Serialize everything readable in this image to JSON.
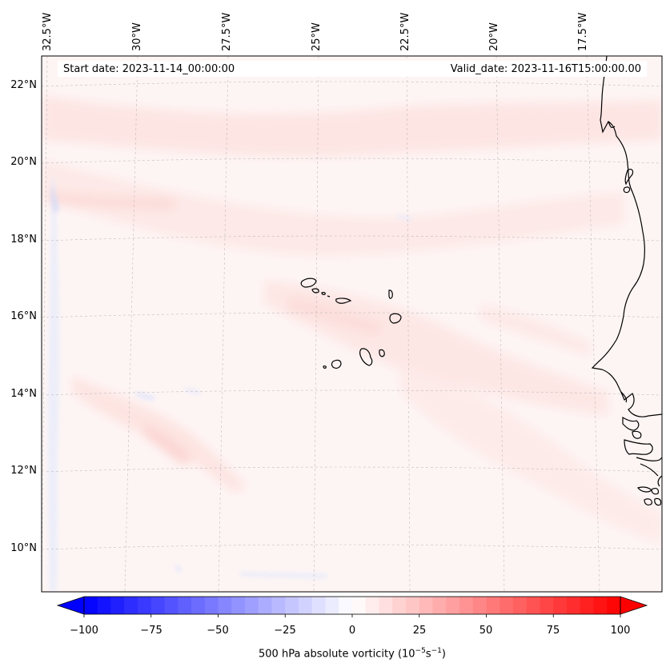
{
  "map": {
    "start_date": "Start date: 2023-11-14_00:00:00",
    "valid_date": "Valid_date: 2023-11-16T15:00:00.00",
    "lat_labels": [
      "22°N",
      "20°N",
      "18°N",
      "16°N",
      "14°N",
      "12°N",
      "10°N"
    ],
    "lon_labels": [
      "32.5°W",
      "30°W",
      "27.5°W",
      "25°W",
      "22.5°W",
      "20°W",
      "17.5°W"
    ],
    "field": "500 hPa absolute vorticity",
    "coastline_color": "#000000"
  },
  "colorbar": {
    "min": -100,
    "max": 100,
    "ticks": [
      "−100",
      "−75",
      "−50",
      "−25",
      "0",
      "25",
      "50",
      "75",
      "100"
    ],
    "label_main": "500 hPa absolute vorticity (10",
    "label_exp1": "−5",
    "label_mid": "s",
    "label_exp2": "−1",
    "label_end": ")",
    "colormap": "bwr",
    "low_color": "#0000ff",
    "mid_color": "#ffffff",
    "high_color": "#ff0000"
  }
}
